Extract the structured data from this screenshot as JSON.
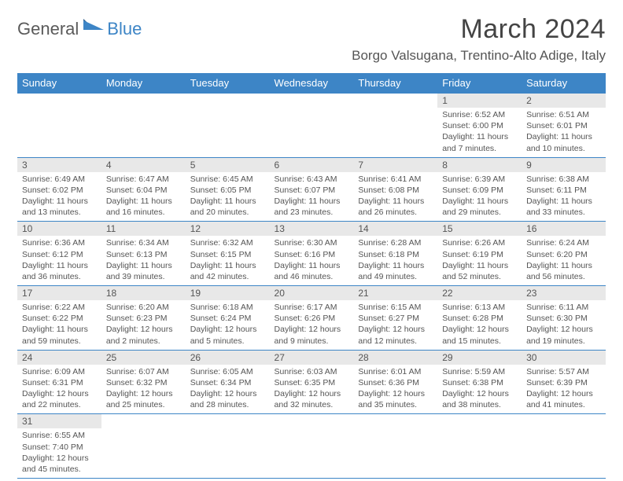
{
  "brand": {
    "part1": "General",
    "part2": "Blue"
  },
  "title": "March 2024",
  "location": "Borgo Valsugana, Trentino-Alto Adige, Italy",
  "colors": {
    "header_bg": "#3d85c6",
    "header_text": "#ffffff",
    "daynum_bg": "#e8e8e8",
    "border": "#3d85c6",
    "text": "#555555",
    "brand_grey": "#5a5a5a",
    "brand_blue": "#3d85c6"
  },
  "dayHeaders": [
    "Sunday",
    "Monday",
    "Tuesday",
    "Wednesday",
    "Thursday",
    "Friday",
    "Saturday"
  ],
  "weeks": [
    [
      null,
      null,
      null,
      null,
      null,
      {
        "n": "1",
        "sunrise": "6:52 AM",
        "sunset": "6:00 PM",
        "day_h": 11,
        "day_m": 7
      },
      {
        "n": "2",
        "sunrise": "6:51 AM",
        "sunset": "6:01 PM",
        "day_h": 11,
        "day_m": 10
      }
    ],
    [
      {
        "n": "3",
        "sunrise": "6:49 AM",
        "sunset": "6:02 PM",
        "day_h": 11,
        "day_m": 13
      },
      {
        "n": "4",
        "sunrise": "6:47 AM",
        "sunset": "6:04 PM",
        "day_h": 11,
        "day_m": 16
      },
      {
        "n": "5",
        "sunrise": "6:45 AM",
        "sunset": "6:05 PM",
        "day_h": 11,
        "day_m": 20
      },
      {
        "n": "6",
        "sunrise": "6:43 AM",
        "sunset": "6:07 PM",
        "day_h": 11,
        "day_m": 23
      },
      {
        "n": "7",
        "sunrise": "6:41 AM",
        "sunset": "6:08 PM",
        "day_h": 11,
        "day_m": 26
      },
      {
        "n": "8",
        "sunrise": "6:39 AM",
        "sunset": "6:09 PM",
        "day_h": 11,
        "day_m": 29
      },
      {
        "n": "9",
        "sunrise": "6:38 AM",
        "sunset": "6:11 PM",
        "day_h": 11,
        "day_m": 33
      }
    ],
    [
      {
        "n": "10",
        "sunrise": "6:36 AM",
        "sunset": "6:12 PM",
        "day_h": 11,
        "day_m": 36
      },
      {
        "n": "11",
        "sunrise": "6:34 AM",
        "sunset": "6:13 PM",
        "day_h": 11,
        "day_m": 39
      },
      {
        "n": "12",
        "sunrise": "6:32 AM",
        "sunset": "6:15 PM",
        "day_h": 11,
        "day_m": 42
      },
      {
        "n": "13",
        "sunrise": "6:30 AM",
        "sunset": "6:16 PM",
        "day_h": 11,
        "day_m": 46
      },
      {
        "n": "14",
        "sunrise": "6:28 AM",
        "sunset": "6:18 PM",
        "day_h": 11,
        "day_m": 49
      },
      {
        "n": "15",
        "sunrise": "6:26 AM",
        "sunset": "6:19 PM",
        "day_h": 11,
        "day_m": 52
      },
      {
        "n": "16",
        "sunrise": "6:24 AM",
        "sunset": "6:20 PM",
        "day_h": 11,
        "day_m": 56
      }
    ],
    [
      {
        "n": "17",
        "sunrise": "6:22 AM",
        "sunset": "6:22 PM",
        "day_h": 11,
        "day_m": 59
      },
      {
        "n": "18",
        "sunrise": "6:20 AM",
        "sunset": "6:23 PM",
        "day_h": 12,
        "day_m": 2
      },
      {
        "n": "19",
        "sunrise": "6:18 AM",
        "sunset": "6:24 PM",
        "day_h": 12,
        "day_m": 5
      },
      {
        "n": "20",
        "sunrise": "6:17 AM",
        "sunset": "6:26 PM",
        "day_h": 12,
        "day_m": 9
      },
      {
        "n": "21",
        "sunrise": "6:15 AM",
        "sunset": "6:27 PM",
        "day_h": 12,
        "day_m": 12
      },
      {
        "n": "22",
        "sunrise": "6:13 AM",
        "sunset": "6:28 PM",
        "day_h": 12,
        "day_m": 15
      },
      {
        "n": "23",
        "sunrise": "6:11 AM",
        "sunset": "6:30 PM",
        "day_h": 12,
        "day_m": 19
      }
    ],
    [
      {
        "n": "24",
        "sunrise": "6:09 AM",
        "sunset": "6:31 PM",
        "day_h": 12,
        "day_m": 22
      },
      {
        "n": "25",
        "sunrise": "6:07 AM",
        "sunset": "6:32 PM",
        "day_h": 12,
        "day_m": 25
      },
      {
        "n": "26",
        "sunrise": "6:05 AM",
        "sunset": "6:34 PM",
        "day_h": 12,
        "day_m": 28
      },
      {
        "n": "27",
        "sunrise": "6:03 AM",
        "sunset": "6:35 PM",
        "day_h": 12,
        "day_m": 32
      },
      {
        "n": "28",
        "sunrise": "6:01 AM",
        "sunset": "6:36 PM",
        "day_h": 12,
        "day_m": 35
      },
      {
        "n": "29",
        "sunrise": "5:59 AM",
        "sunset": "6:38 PM",
        "day_h": 12,
        "day_m": 38
      },
      {
        "n": "30",
        "sunrise": "5:57 AM",
        "sunset": "6:39 PM",
        "day_h": 12,
        "day_m": 41
      }
    ],
    [
      {
        "n": "31",
        "sunrise": "6:55 AM",
        "sunset": "7:40 PM",
        "day_h": 12,
        "day_m": 45
      },
      null,
      null,
      null,
      null,
      null,
      null
    ]
  ],
  "labels": {
    "sunrise": "Sunrise:",
    "sunset": "Sunset:",
    "daylight": "Daylight:",
    "hours": "hours",
    "and": "and",
    "minutes": "minutes."
  }
}
